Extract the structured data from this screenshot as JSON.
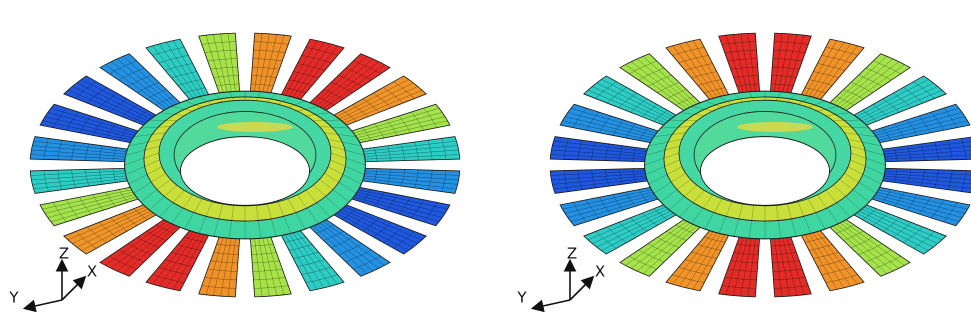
{
  "panels": [
    {
      "axes": {
        "z": "Z",
        "x": "X",
        "y": "Y"
      }
    },
    {
      "axes": {
        "z": "Z",
        "x": "X",
        "y": "Y"
      }
    }
  ]
}
